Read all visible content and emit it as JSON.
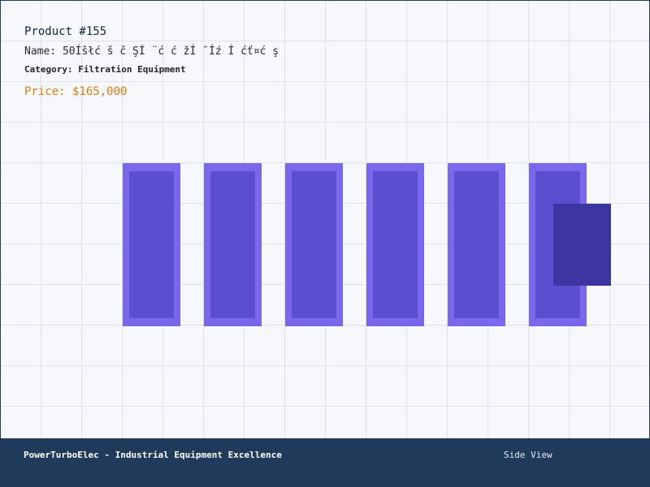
{
  "product": {
    "id_label": "Product #155",
    "name_label": "Name: 50Íšłć š č ŞÍ ¨ć  ć žÍ ˘Íź Í  ćť¤ć ş",
    "category_label": "Category: Filtration Equipment",
    "price_label": "Price: $165,000"
  },
  "diagram": {
    "module_count": 6,
    "colors": {
      "module_outer": "#7a68ec",
      "module_inner": "#5a4fcf",
      "side_block": "#3d35a0"
    }
  },
  "footer": {
    "brand_text": "PowerTurboElec - Industrial Equipment Excellence",
    "view_label": "Side View",
    "background": "#1f3a5a"
  }
}
